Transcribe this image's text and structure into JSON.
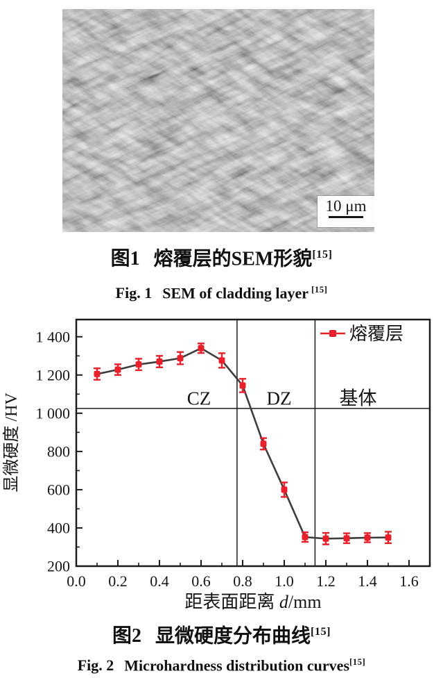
{
  "page": {
    "background": "#ffffff"
  },
  "figure1": {
    "sem": {
      "scale_bar_label": "10 μm"
    },
    "caption_zh": {
      "prefix": "图1",
      "text": "熔覆层的SEM形貌",
      "ref": "[15]"
    },
    "caption_en": {
      "prefix": "Fig. 1",
      "text": "SEM of cladding layer",
      "ref": "[15]"
    }
  },
  "figure2": {
    "caption_zh": {
      "prefix": "图2",
      "text": "显微硬度分布曲线",
      "ref": "[15]"
    },
    "caption_en": {
      "prefix": "Fig. 2",
      "text": "Microhardness distribution curves",
      "ref": "[15]"
    }
  },
  "chart_data": {
    "type": "line",
    "title": "",
    "xlabel": "距表面距离 d/mm",
    "xlabel_parts": {
      "prefix": "距表面距离 ",
      "var": "d",
      "unit": "/mm"
    },
    "ylabel": "显微硬度 /HV",
    "xlim": [
      0.0,
      1.7
    ],
    "ylim": [
      200,
      1490
    ],
    "x_ticks": [
      0.0,
      0.2,
      0.4,
      0.6,
      0.8,
      1.0,
      1.2,
      1.4,
      1.6
    ],
    "x_tick_labels": [
      "0.0",
      "0.2",
      "0.4",
      "0.6",
      "0.8",
      "1.0",
      "1.2",
      "1.4",
      "1.6"
    ],
    "x_minor_step": 0.1,
    "y_ticks": [
      200,
      400,
      600,
      800,
      1000,
      1200,
      1400
    ],
    "y_tick_labels": [
      "200",
      "400",
      "600",
      "800",
      "1 000",
      "1 200",
      "1 400"
    ],
    "y_minor_step": 100,
    "grid": false,
    "legend": {
      "position": "top-right",
      "label": "熔覆层"
    },
    "zones": {
      "vertical_lines_x": [
        0.773,
        1.148
      ],
      "horizontal_line_y": 1025,
      "labels": [
        {
          "text": "CZ",
          "x": 0.59,
          "y": 1080
        },
        {
          "text": "DZ",
          "x": 0.975,
          "y": 1080
        },
        {
          "text": "基体",
          "x": 1.355,
          "y": 1080
        }
      ]
    },
    "series": [
      {
        "name": "熔覆层",
        "marker_color": "#e8202c",
        "line_color": "#3d3d3d",
        "x": [
          0.1,
          0.2,
          0.3,
          0.4,
          0.5,
          0.6,
          0.7,
          0.8,
          0.9,
          1.0,
          1.1,
          1.2,
          1.3,
          1.4,
          1.5
        ],
        "y": [
          1205,
          1228,
          1255,
          1270,
          1288,
          1340,
          1276,
          1145,
          840,
          600,
          352,
          344,
          346,
          349,
          350
        ],
        "yerr": [
          30,
          28,
          30,
          30,
          32,
          25,
          38,
          35,
          30,
          38,
          25,
          30,
          26,
          24,
          30
        ]
      }
    ]
  },
  "colors": {
    "accent_red": "#e8202c",
    "curve_dark": "#3d3d3d",
    "axis": "#1c1c1c"
  }
}
